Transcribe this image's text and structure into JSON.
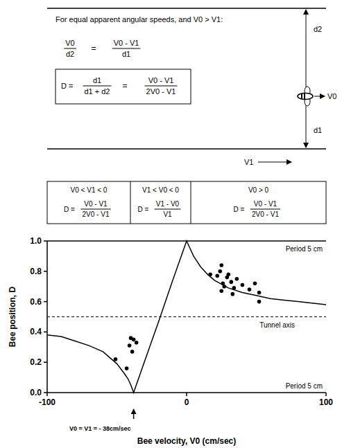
{
  "diagram": {
    "condition": "For equal apparent angular speeds, and V0 > V1:",
    "equation": {
      "left": {
        "num": "V0",
        "den": "d2"
      },
      "equals": "=",
      "right": {
        "num": "V0 - V1",
        "den": "d1"
      }
    },
    "boxed": {
      "lhs": "D =",
      "first": {
        "num": "d1",
        "den": "d1 + d2"
      },
      "equals": "=",
      "second": {
        "num": "V0 - V1",
        "den": "2V0 - V1"
      }
    },
    "labels": {
      "d2": "d2",
      "d1": "d1",
      "V0": "V0",
      "V1": "V1"
    }
  },
  "conditions": [
    {
      "condition": "V0 < V1 < 0",
      "lhs": "D =",
      "num": "V0 - V1",
      "den": "2V0 - V1"
    },
    {
      "condition": "V1 < V0 < 0",
      "lhs": "D =",
      "num": "V1 - V0",
      "den": "V1"
    },
    {
      "condition": "V0 > 0",
      "lhs": "D =",
      "num": "V0 - V1",
      "den": "2V0 - V1"
    }
  ],
  "chart_data": {
    "type": "scatter",
    "x_label": "Bee velocity, V0 (cm/sec)",
    "y_label": "Bee position, D",
    "xlim": [
      -100,
      100
    ],
    "xticks": [
      -100,
      0,
      100
    ],
    "ylim": [
      0,
      1
    ],
    "yticks": [
      {
        "value": 0,
        "label": "0.0"
      },
      {
        "value": 0.2,
        "label": "0.2"
      },
      {
        "value": 0.4,
        "label": "0.4"
      },
      {
        "value": 0.6,
        "label": "0.6"
      },
      {
        "value": 0.8,
        "label": "0.8"
      },
      {
        "value": 1,
        "label": "1.0"
      }
    ],
    "grid": false,
    "series": [
      {
        "type": "line",
        "color": "#000000",
        "line_style": "solid",
        "x": [
          -100,
          -90,
          -80,
          -70,
          -60,
          -50,
          -45,
          -42,
          -40,
          -38,
          -30,
          -20,
          -10,
          0,
          5,
          10,
          15,
          20,
          30,
          40,
          50,
          60,
          70,
          80,
          90,
          100
        ],
        "values": [
          0.38,
          0.37,
          0.34,
          0.31,
          0.27,
          0.19,
          0.13,
          0.09,
          0.05,
          0,
          0.21,
          0.47,
          0.74,
          1,
          0.9,
          0.83,
          0.78,
          0.74,
          0.69,
          0.66,
          0.64,
          0.62,
          0.61,
          0.6,
          0.59,
          0.58
        ]
      },
      {
        "type": "scatter",
        "color": "#000000",
        "marker": "circle",
        "x": [
          -51,
          -43,
          -41,
          -40,
          -38,
          -36,
          -39,
          17,
          22,
          25,
          24,
          26,
          25,
          27,
          29,
          30,
          32,
          33,
          36,
          40,
          45,
          49,
          52,
          52,
          34
        ],
        "values": [
          0.22,
          0.16,
          0.31,
          0.36,
          0.35,
          0.33,
          0.27,
          0.78,
          0.77,
          0.84,
          0.8,
          0.72,
          0.67,
          0.7,
          0.76,
          0.78,
          0.73,
          0.65,
          0.75,
          0.71,
          0.68,
          0.72,
          0.66,
          0.6,
          0.69
        ]
      }
    ],
    "annotations": [
      {
        "text": "Period 5 cm",
        "y": 1
      },
      {
        "text": "Period 5 cm",
        "y": 0
      },
      {
        "text": "Tunnel axis",
        "y": 0.5,
        "line_style": "dashed"
      },
      {
        "text": "V0 = V1 = - 38cm/sec",
        "x": -38
      }
    ]
  }
}
